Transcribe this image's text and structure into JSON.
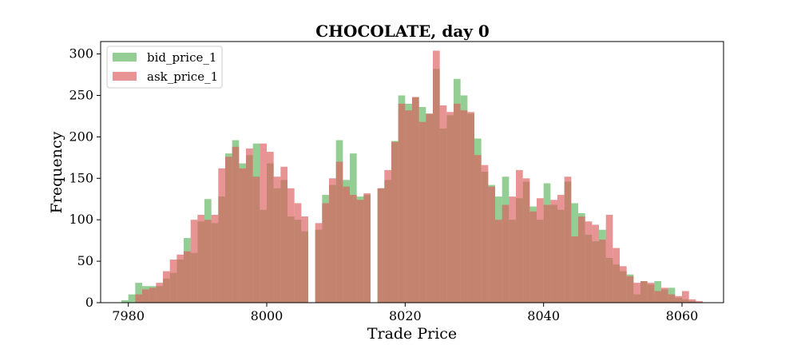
{
  "chart_data": {
    "type": "histogram",
    "title": "CHOCOLATE, day 0",
    "xlabel": "Trade Price",
    "ylabel": "Frequency",
    "xlim": [
      7976,
      8066
    ],
    "ylim": [
      0,
      315
    ],
    "xticks": [
      7980,
      8000,
      8020,
      8040,
      8060
    ],
    "yticks": [
      0,
      50,
      100,
      150,
      200,
      250,
      300
    ],
    "bin_width": 1,
    "legend_position": "top-left",
    "series": [
      {
        "name": "bid_price_1",
        "color": "#5ab45a",
        "opacity": 0.65,
        "x": [
          7979,
          7980,
          7981,
          7982,
          7983,
          7984,
          7985,
          7986,
          7987,
          7988,
          7989,
          7990,
          7991,
          7992,
          7993,
          7994,
          7995,
          7996,
          7997,
          7998,
          7999,
          8000,
          8001,
          8002,
          8003,
          8004,
          8005,
          8007,
          8008,
          8009,
          8010,
          8011,
          8012,
          8013,
          8014,
          8016,
          8017,
          8018,
          8019,
          8020,
          8021,
          8022,
          8023,
          8024,
          8025,
          8026,
          8027,
          8028,
          8029,
          8030,
          8031,
          8032,
          8033,
          8034,
          8035,
          8036,
          8037,
          8038,
          8039,
          8040,
          8041,
          8042,
          8043,
          8044,
          8045,
          8046,
          8047,
          8048,
          8049,
          8050,
          8051,
          8052,
          8053,
          8054,
          8055,
          8056,
          8057,
          8058,
          8059,
          8060,
          8061
        ],
        "values": [
          3,
          10,
          24,
          20,
          20,
          20,
          29,
          36,
          52,
          78,
          60,
          98,
          125,
          96,
          128,
          180,
          196,
          168,
          178,
          192,
          112,
          168,
          138,
          148,
          104,
          100,
          86,
          88,
          130,
          142,
          196,
          148,
          180,
          128,
          130,
          138,
          148,
          195,
          250,
          240,
          248,
          236,
          228,
          282,
          210,
          226,
          270,
          250,
          228,
          198,
          158,
          142,
          128,
          152,
          100,
          126,
          146,
          116,
          100,
          144,
          118,
          112,
          146,
          120,
          108,
          82,
          74,
          88,
          54,
          46,
          38,
          34,
          10,
          26,
          22,
          26,
          16,
          18,
          6,
          4,
          2
        ]
      },
      {
        "name": "ask_price_1",
        "color": "#dc5a5a",
        "opacity": 0.65,
        "x": [
          7981,
          7982,
          7983,
          7984,
          7985,
          7986,
          7987,
          7988,
          7989,
          7990,
          7991,
          7992,
          7993,
          7994,
          7995,
          7996,
          7997,
          7998,
          7999,
          8000,
          8001,
          8002,
          8003,
          8004,
          8005,
          8007,
          8008,
          8009,
          8010,
          8011,
          8012,
          8013,
          8014,
          8016,
          8017,
          8018,
          8019,
          8020,
          8021,
          8022,
          8023,
          8024,
          8025,
          8026,
          8027,
          8028,
          8029,
          8030,
          8031,
          8032,
          8033,
          8034,
          8035,
          8036,
          8037,
          8038,
          8039,
          8040,
          8041,
          8042,
          8043,
          8044,
          8045,
          8046,
          8047,
          8048,
          8049,
          8050,
          8051,
          8052,
          8053,
          8054,
          8055,
          8056,
          8057,
          8058,
          8059,
          8060,
          8061,
          8062
        ],
        "values": [
          10,
          16,
          18,
          24,
          38,
          52,
          58,
          62,
          100,
          106,
          100,
          106,
          162,
          176,
          188,
          162,
          186,
          152,
          192,
          182,
          152,
          164,
          138,
          120,
          104,
          96,
          120,
          150,
          170,
          140,
          130,
          124,
          132,
          138,
          160,
          194,
          240,
          232,
          248,
          218,
          228,
          304,
          238,
          230,
          240,
          232,
          230,
          178,
          166,
          140,
          100,
          118,
          128,
          160,
          150,
          110,
          126,
          118,
          124,
          130,
          152,
          80,
          104,
          98,
          94,
          76,
          106,
          66,
          44,
          32,
          24,
          26,
          24,
          14,
          18,
          10,
          8,
          14,
          4,
          2
        ]
      }
    ]
  }
}
